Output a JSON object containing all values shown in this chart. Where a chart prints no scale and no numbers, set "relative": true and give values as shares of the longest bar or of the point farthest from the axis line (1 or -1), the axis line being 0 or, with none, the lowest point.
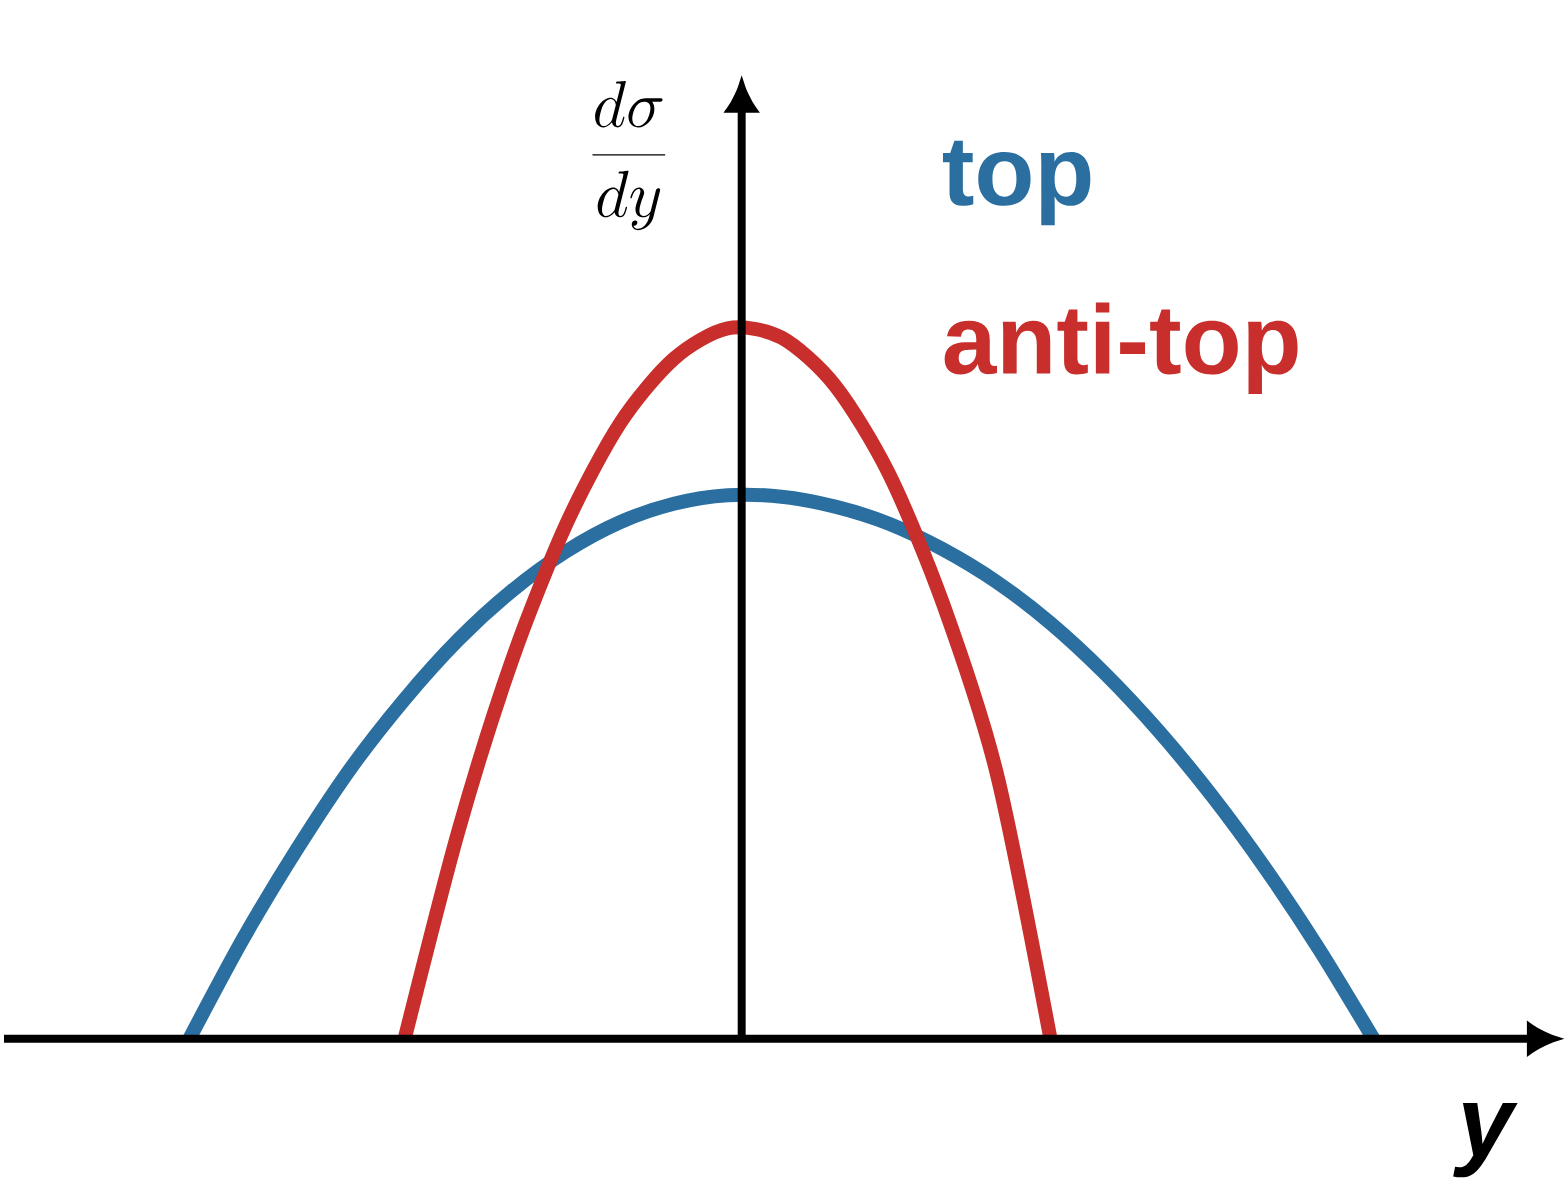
{
  "chart_data": {
    "type": "line",
    "relative": true,
    "xlabel": "y",
    "ylabel": "\\frac{d\\sigma}{dy}",
    "legend": "top right",
    "categories": [
      null,
      null,
      null,
      null,
      null,
      null,
      null,
      null,
      null,
      null,
      null,
      null,
      null,
      null,
      null,
      null,
      null,
      null,
      null,
      null,
      null,
      null,
      null
    ],
    "series": [
      {
        "name": "top",
        "color": "#2a6fa0",
        "values": [
          0,
          0.141,
          0.267,
          0.381,
          0.478,
          0.562,
          0.631,
          0.686,
          0.727,
          0.753,
          0.765,
          0.763,
          0.749,
          0.725,
          0.689,
          0.643,
          0.585,
          0.515,
          0.434,
          0.342,
          0.239,
          0.125,
          0
        ]
      },
      {
        "name": "anti-top",
        "color": "#c82e2b",
        "values": [
          null,
          null,
          null,
          null,
          0,
          0.293,
          0.534,
          0.724,
          0.866,
          0.957,
          1,
          0.987,
          0.919,
          0.795,
          0.613,
          0.374,
          0,
          null,
          null,
          null,
          null,
          null,
          null
        ]
      }
    ]
  }
}
